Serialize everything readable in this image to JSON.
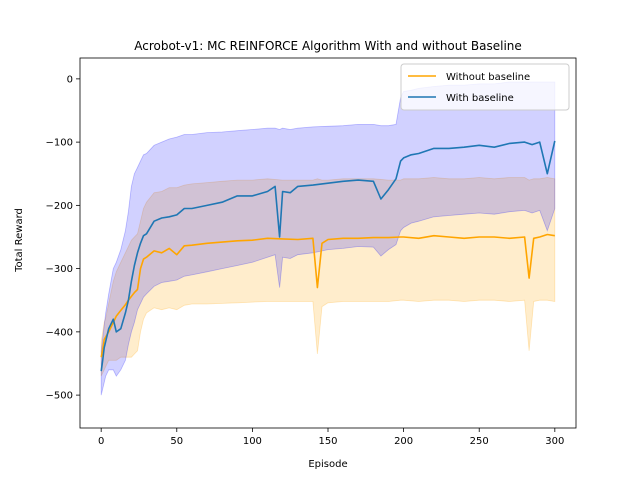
{
  "chart_data": {
    "type": "line",
    "title": "Acrobot-v1: MC REINFORCE Algorithm With and without Baseline",
    "xlabel": "Episode",
    "ylabel": "Total Reward",
    "xlim": [
      -14,
      314
    ],
    "ylim": [
      -552,
      33
    ],
    "xticks": [
      0,
      50,
      100,
      150,
      200,
      250,
      300
    ],
    "yticks": [
      0,
      -100,
      -200,
      -300,
      -400,
      -500
    ],
    "xtick_labels": [
      "0",
      "50",
      "100",
      "150",
      "200",
      "250",
      "300"
    ],
    "ytick_labels": [
      "0",
      "−100",
      "−200",
      "−300",
      "−400",
      "−500"
    ],
    "grid": false,
    "legend": {
      "position": "top-right"
    },
    "series": [
      {
        "name": "Without baseline",
        "color": "#ffa500",
        "band_color": "#ffa500",
        "x": [
          0,
          1,
          2,
          3,
          5,
          8,
          10,
          13,
          16,
          18,
          20,
          22,
          24,
          26,
          28,
          30,
          35,
          40,
          45,
          50,
          55,
          60,
          70,
          80,
          90,
          100,
          110,
          120,
          130,
          140,
          143,
          146,
          150,
          160,
          170,
          180,
          190,
          198,
          200,
          210,
          220,
          230,
          240,
          250,
          260,
          270,
          280,
          283,
          286,
          290,
          295,
          300
        ],
        "mean": [
          -440,
          -428,
          -412,
          -408,
          -400,
          -385,
          -375,
          -366,
          -357,
          -350,
          -344,
          -338,
          -333,
          -300,
          -285,
          -282,
          -272,
          -275,
          -268,
          -278,
          -264,
          -263,
          -260,
          -258,
          -256,
          -255,
          -252,
          -253,
          -254,
          -252,
          -330,
          -260,
          -254,
          -252,
          -252,
          -251,
          -251,
          -250,
          -250,
          -252,
          -248,
          -250,
          -252,
          -250,
          -250,
          -252,
          -250,
          -315,
          -252,
          -250,
          -246,
          -248
        ],
        "upper": [
          -415,
          -400,
          -385,
          -378,
          -355,
          -320,
          -305,
          -290,
          -275,
          -265,
          -255,
          -250,
          -245,
          -225,
          -205,
          -195,
          -180,
          -178,
          -172,
          -172,
          -168,
          -166,
          -164,
          -162,
          -160,
          -160,
          -158,
          -160,
          -160,
          -160,
          -158,
          -160,
          -160,
          -158,
          -158,
          -158,
          -160,
          -160,
          -158,
          -158,
          -156,
          -158,
          -158,
          -156,
          -158,
          -156,
          -156,
          -160,
          -158,
          -158,
          -156,
          -158
        ],
        "lower": [
          -470,
          -465,
          -460,
          -455,
          -445,
          -445,
          -445,
          -440,
          -440,
          -440,
          -440,
          -435,
          -430,
          -400,
          -380,
          -370,
          -362,
          -365,
          -362,
          -365,
          -358,
          -356,
          -356,
          -355,
          -354,
          -353,
          -352,
          -352,
          -352,
          -352,
          -435,
          -360,
          -354,
          -352,
          -352,
          -352,
          -352,
          -350,
          -350,
          -352,
          -350,
          -350,
          -352,
          -350,
          -350,
          -352,
          -350,
          -430,
          -352,
          -350,
          -350,
          -352
        ]
      },
      {
        "name": "With baseline",
        "color": "#1f77b4",
        "band_color": "#0000ff",
        "x": [
          0,
          1,
          2,
          3,
          5,
          8,
          10,
          13,
          16,
          18,
          20,
          22,
          24,
          26,
          28,
          30,
          35,
          40,
          45,
          50,
          55,
          60,
          70,
          80,
          90,
          100,
          110,
          115,
          118,
          120,
          125,
          130,
          140,
          150,
          160,
          170,
          180,
          185,
          190,
          195,
          198,
          200,
          205,
          210,
          220,
          230,
          240,
          250,
          260,
          270,
          280,
          285,
          290,
          295,
          300
        ],
        "mean": [
          -462,
          -445,
          -425,
          -415,
          -395,
          -380,
          -400,
          -395,
          -370,
          -350,
          -320,
          -295,
          -275,
          -260,
          -248,
          -245,
          -225,
          -220,
          -218,
          -215,
          -205,
          -205,
          -200,
          -195,
          -185,
          -185,
          -178,
          -170,
          -250,
          -178,
          -180,
          -170,
          -168,
          -165,
          -162,
          -160,
          -162,
          -190,
          -175,
          -158,
          -130,
          -125,
          -120,
          -118,
          -110,
          -110,
          -108,
          -105,
          -108,
          -102,
          -100,
          -104,
          -100,
          -150,
          -98
        ],
        "upper": [
          -430,
          -410,
          -390,
          -370,
          -340,
          -300,
          -290,
          -270,
          -240,
          -210,
          -170,
          -150,
          -140,
          -130,
          -120,
          -118,
          -105,
          -100,
          -95,
          -92,
          -88,
          -88,
          -85,
          -84,
          -82,
          -80,
          -78,
          -78,
          -80,
          -78,
          -80,
          -78,
          -76,
          -75,
          -74,
          -72,
          -72,
          -74,
          -74,
          -72,
          -30,
          -20,
          -18,
          -15,
          -12,
          -10,
          -10,
          -8,
          -8,
          -5,
          -5,
          -5,
          -5,
          -5,
          -5
        ],
        "lower": [
          -500,
          -490,
          -480,
          -470,
          -460,
          -460,
          -470,
          -460,
          -445,
          -420,
          -400,
          -385,
          -365,
          -355,
          -345,
          -340,
          -328,
          -322,
          -320,
          -318,
          -312,
          -310,
          -305,
          -300,
          -295,
          -290,
          -282,
          -278,
          -330,
          -282,
          -284,
          -278,
          -275,
          -270,
          -268,
          -265,
          -266,
          -280,
          -270,
          -262,
          -240,
          -235,
          -228,
          -225,
          -218,
          -216,
          -214,
          -212,
          -214,
          -210,
          -208,
          -212,
          -208,
          -240,
          -205
        ]
      }
    ]
  }
}
